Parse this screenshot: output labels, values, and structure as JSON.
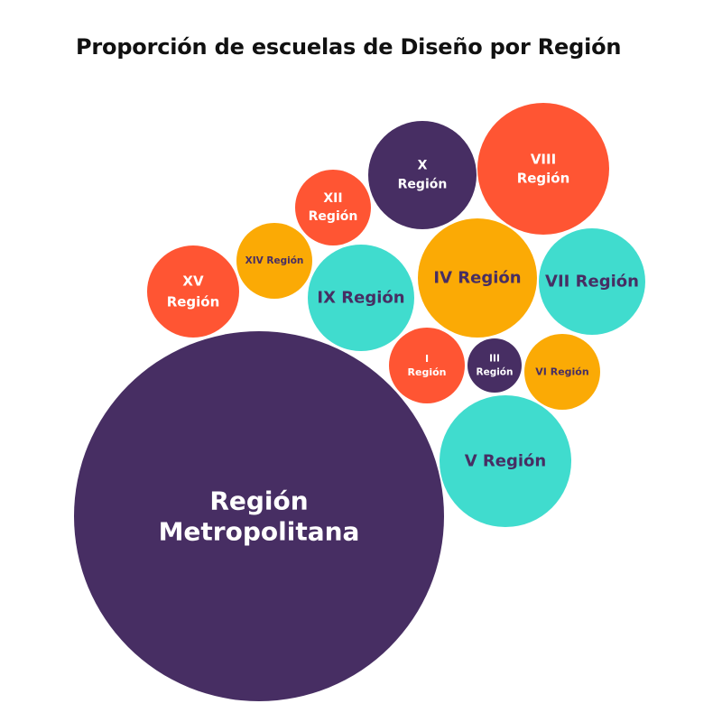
{
  "chart_data": {
    "type": "bubble",
    "title": "Proporción de escuelas de Diseño por Región",
    "colors": {
      "purple": "#472e63",
      "orange_red": "#ff5533",
      "amber": "#fbaa05",
      "teal": "#40dcce"
    },
    "bubbles": [
      {
        "name": "Región Metropolitana",
        "lines": [
          "Región",
          "Metropolitana"
        ],
        "value": 100,
        "color": "#472e63",
        "text_color": "#ffffff"
      },
      {
        "name": "V Región",
        "lines": [
          "V Región"
        ],
        "value": 13.3,
        "color": "#40dcce",
        "text_color": "#472e63"
      },
      {
        "name": "VIII Región",
        "lines": [
          "VIII",
          "Región"
        ],
        "value": 11.8,
        "color": "#ff5533",
        "text_color": "#ffffff"
      },
      {
        "name": "IV Región",
        "lines": [
          "IV Región"
        ],
        "value": 10.6,
        "color": "#fbaa05",
        "text_color": "#472e63"
      },
      {
        "name": "VII Región",
        "lines": [
          "VII Región"
        ],
        "value": 8.5,
        "color": "#40dcce",
        "text_color": "#472e63"
      },
      {
        "name": "IX Región",
        "lines": [
          "IX Región"
        ],
        "value": 8.5,
        "color": "#40dcce",
        "text_color": "#472e63"
      },
      {
        "name": "X Región",
        "lines": [
          "X",
          "Región"
        ],
        "value": 8.4,
        "color": "#472e63",
        "text_color": "#ffffff"
      },
      {
        "name": "XV Región",
        "lines": [
          "XV",
          "Región"
        ],
        "value": 6.2,
        "color": "#ff5533",
        "text_color": "#ffffff"
      },
      {
        "name": "XII Región",
        "lines": [
          "XII",
          "Región"
        ],
        "value": 3.8,
        "color": "#ff5533",
        "text_color": "#ffffff"
      },
      {
        "name": "XIV Región",
        "lines": [
          "XIV Región"
        ],
        "value": 4.0,
        "color": "#fbaa05",
        "text_color": "#472e63"
      },
      {
        "name": "VI Región",
        "lines": [
          "VI Región"
        ],
        "value": 4.0,
        "color": "#fbaa05",
        "text_color": "#472e63"
      },
      {
        "name": "I Región",
        "lines": [
          "I",
          "Región"
        ],
        "value": 2.8,
        "color": "#ff5533",
        "text_color": "#ffffff"
      },
      {
        "name": "III Región",
        "lines": [
          "III",
          "Región"
        ],
        "value": 2.0,
        "color": "#472e63",
        "text_color": "#ffffff"
      }
    ]
  }
}
